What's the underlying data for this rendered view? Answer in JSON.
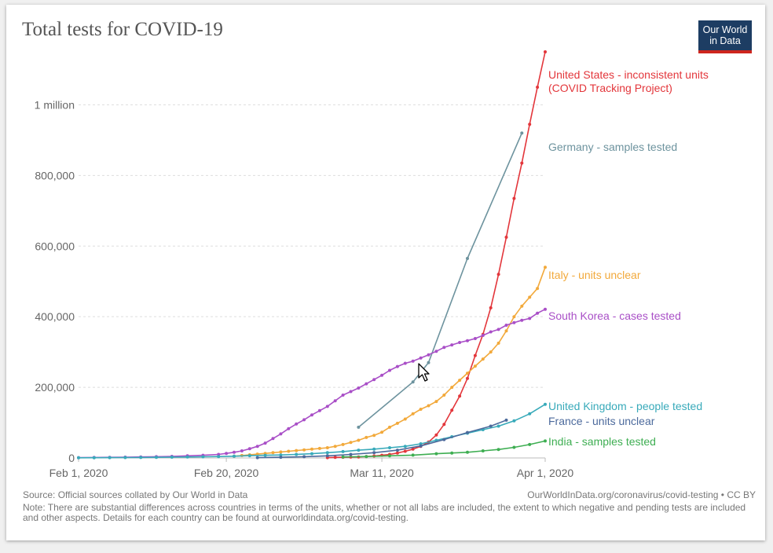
{
  "title": "Total tests for COVID-19",
  "logo": {
    "line1": "Our World",
    "line2": "in Data"
  },
  "footer": {
    "source": "Source: Official sources collated by Our World in Data",
    "url": "OurWorldInData.org/coronavirus/covid-testing • CC BY",
    "note": "Note: There are substantial differences across countries in terms of the units, whether or not all labs are included, the extent to which negative and pending tests are included and other aspects. Details for each country can be found at ourworldindata.org/covid-testing."
  },
  "chart_data": {
    "type": "line",
    "title": "Total tests for COVID-19",
    "xlabel": "",
    "ylabel": "",
    "x_range": [
      "2020-02-01",
      "2020-04-01"
    ],
    "ylim": [
      0,
      1150000
    ],
    "x_ticks": [
      {
        "date": "2020-02-01",
        "label": "Feb 1, 2020"
      },
      {
        "date": "2020-02-20",
        "label": "Feb 20, 2020"
      },
      {
        "date": "2020-03-11",
        "label": "Mar 11, 2020"
      },
      {
        "date": "2020-04-01",
        "label": "Apr 1, 2020"
      }
    ],
    "y_ticks": [
      {
        "value": 0,
        "label": "0"
      },
      {
        "value": 200000,
        "label": "200,000"
      },
      {
        "value": 400000,
        "label": "400,000"
      },
      {
        "value": 600000,
        "label": "600,000"
      },
      {
        "value": 800000,
        "label": "800,000"
      },
      {
        "value": 1000000,
        "label": "1 million"
      }
    ],
    "grid": "horizontal",
    "legend": "inline-right",
    "series": [
      {
        "name": "United States - inconsistent units (COVID Tracking Project)",
        "label_lines": [
          "United States - inconsistent units",
          "(COVID Tracking Project)"
        ],
        "color": "#e3363b",
        "points": [
          [
            "2020-03-04",
            1000
          ],
          [
            "2020-03-05",
            1500
          ],
          [
            "2020-03-06",
            2000
          ],
          [
            "2020-03-07",
            2500
          ],
          [
            "2020-03-08",
            3000
          ],
          [
            "2020-03-09",
            4000
          ],
          [
            "2020-03-10",
            5500
          ],
          [
            "2020-03-11",
            7500
          ],
          [
            "2020-03-12",
            10000
          ],
          [
            "2020-03-13",
            14000
          ],
          [
            "2020-03-14",
            19000
          ],
          [
            "2020-03-15",
            25000
          ],
          [
            "2020-03-16",
            33000
          ],
          [
            "2020-03-17",
            45000
          ],
          [
            "2020-03-18",
            65000
          ],
          [
            "2020-03-19",
            95000
          ],
          [
            "2020-03-20",
            135000
          ],
          [
            "2020-03-21",
            175000
          ],
          [
            "2020-03-22",
            225000
          ],
          [
            "2020-03-23",
            290000
          ],
          [
            "2020-03-24",
            350000
          ],
          [
            "2020-03-25",
            425000
          ],
          [
            "2020-03-26",
            520000
          ],
          [
            "2020-03-27",
            625000
          ],
          [
            "2020-03-28",
            735000
          ],
          [
            "2020-03-29",
            835000
          ],
          [
            "2020-03-30",
            945000
          ],
          [
            "2020-03-31",
            1050000
          ],
          [
            "2020-04-01",
            1150000
          ]
        ]
      },
      {
        "name": "Germany - samples tested",
        "label_lines": [
          "Germany - samples tested"
        ],
        "color": "#6d939e",
        "points": [
          [
            "2020-03-08",
            87000
          ],
          [
            "2020-03-15",
            215000
          ],
          [
            "2020-03-17",
            270000
          ],
          [
            "2020-03-22",
            565000
          ],
          [
            "2020-03-29",
            920000
          ]
        ]
      },
      {
        "name": "Italy - units unclear",
        "label_lines": [
          "Italy - units unclear"
        ],
        "color": "#f2a93b",
        "points": [
          [
            "2020-02-21",
            5000
          ],
          [
            "2020-02-22",
            7000
          ],
          [
            "2020-02-23",
            9000
          ],
          [
            "2020-02-24",
            11000
          ],
          [
            "2020-02-25",
            13000
          ],
          [
            "2020-02-26",
            15000
          ],
          [
            "2020-02-27",
            17000
          ],
          [
            "2020-02-28",
            19000
          ],
          [
            "2020-02-29",
            21000
          ],
          [
            "2020-03-01",
            23000
          ],
          [
            "2020-03-02",
            25000
          ],
          [
            "2020-03-03",
            27000
          ],
          [
            "2020-03-04",
            29000
          ],
          [
            "2020-03-05",
            33000
          ],
          [
            "2020-03-06",
            38000
          ],
          [
            "2020-03-07",
            44000
          ],
          [
            "2020-03-08",
            50000
          ],
          [
            "2020-03-09",
            58000
          ],
          [
            "2020-03-10",
            64000
          ],
          [
            "2020-03-11",
            73000
          ],
          [
            "2020-03-12",
            87000
          ],
          [
            "2020-03-13",
            98000
          ],
          [
            "2020-03-14",
            110000
          ],
          [
            "2020-03-15",
            125000
          ],
          [
            "2020-03-16",
            138000
          ],
          [
            "2020-03-17",
            148000
          ],
          [
            "2020-03-18",
            160000
          ],
          [
            "2020-03-19",
            178000
          ],
          [
            "2020-03-20",
            200000
          ],
          [
            "2020-03-21",
            220000
          ],
          [
            "2020-03-22",
            240000
          ],
          [
            "2020-03-23",
            260000
          ],
          [
            "2020-03-24",
            280000
          ],
          [
            "2020-03-25",
            300000
          ],
          [
            "2020-03-26",
            325000
          ],
          [
            "2020-03-27",
            360000
          ],
          [
            "2020-03-28",
            400000
          ],
          [
            "2020-03-29",
            430000
          ],
          [
            "2020-03-30",
            455000
          ],
          [
            "2020-03-31",
            480000
          ],
          [
            "2020-04-01",
            540000
          ]
        ]
      },
      {
        "name": "South Korea - cases tested",
        "label_lines": [
          "South Korea - cases tested"
        ],
        "color": "#a94fc7",
        "points": [
          [
            "2020-02-01",
            1000
          ],
          [
            "2020-02-03",
            1300
          ],
          [
            "2020-02-05",
            1700
          ],
          [
            "2020-02-07",
            2200
          ],
          [
            "2020-02-09",
            2800
          ],
          [
            "2020-02-11",
            3500
          ],
          [
            "2020-02-13",
            4500
          ],
          [
            "2020-02-15",
            6000
          ],
          [
            "2020-02-17",
            7500
          ],
          [
            "2020-02-19",
            10000
          ],
          [
            "2020-02-20",
            13000
          ],
          [
            "2020-02-21",
            16000
          ],
          [
            "2020-02-22",
            20000
          ],
          [
            "2020-02-23",
            26000
          ],
          [
            "2020-02-24",
            33000
          ],
          [
            "2020-02-25",
            42000
          ],
          [
            "2020-02-26",
            55000
          ],
          [
            "2020-02-27",
            68000
          ],
          [
            "2020-02-28",
            83000
          ],
          [
            "2020-02-29",
            96000
          ],
          [
            "2020-03-01",
            108000
          ],
          [
            "2020-03-02",
            122000
          ],
          [
            "2020-03-03",
            134000
          ],
          [
            "2020-03-04",
            146000
          ],
          [
            "2020-03-05",
            162000
          ],
          [
            "2020-03-06",
            178000
          ],
          [
            "2020-03-07",
            188000
          ],
          [
            "2020-03-08",
            198000
          ],
          [
            "2020-03-09",
            210000
          ],
          [
            "2020-03-10",
            222000
          ],
          [
            "2020-03-11",
            234000
          ],
          [
            "2020-03-12",
            248000
          ],
          [
            "2020-03-13",
            259000
          ],
          [
            "2020-03-14",
            268000
          ],
          [
            "2020-03-15",
            274000
          ],
          [
            "2020-03-16",
            283000
          ],
          [
            "2020-03-17",
            292000
          ],
          [
            "2020-03-18",
            302000
          ],
          [
            "2020-03-19",
            313000
          ],
          [
            "2020-03-20",
            320000
          ],
          [
            "2020-03-21",
            327000
          ],
          [
            "2020-03-22",
            332000
          ],
          [
            "2020-03-23",
            338000
          ],
          [
            "2020-03-24",
            347000
          ],
          [
            "2020-03-25",
            357000
          ],
          [
            "2020-03-26",
            364000
          ],
          [
            "2020-03-27",
            376000
          ],
          [
            "2020-03-28",
            383000
          ],
          [
            "2020-03-29",
            390000
          ],
          [
            "2020-03-30",
            395000
          ],
          [
            "2020-03-31",
            410000
          ],
          [
            "2020-04-01",
            421000
          ]
        ]
      },
      {
        "name": "United Kingdom - people tested",
        "label_lines": [
          "United Kingdom - people tested"
        ],
        "color": "#38aaba",
        "points": [
          [
            "2020-02-01",
            500
          ],
          [
            "2020-02-03",
            700
          ],
          [
            "2020-02-05",
            900
          ],
          [
            "2020-02-07",
            1100
          ],
          [
            "2020-02-09",
            1400
          ],
          [
            "2020-02-11",
            1800
          ],
          [
            "2020-02-13",
            2200
          ],
          [
            "2020-02-15",
            2700
          ],
          [
            "2020-02-17",
            3300
          ],
          [
            "2020-02-19",
            4000
          ],
          [
            "2020-02-21",
            5000
          ],
          [
            "2020-02-23",
            6500
          ],
          [
            "2020-02-25",
            7500
          ],
          [
            "2020-02-27",
            8500
          ],
          [
            "2020-02-29",
            10000
          ],
          [
            "2020-03-02",
            12000
          ],
          [
            "2020-03-04",
            15000
          ],
          [
            "2020-03-06",
            18000
          ],
          [
            "2020-03-08",
            22000
          ],
          [
            "2020-03-10",
            25000
          ],
          [
            "2020-03-12",
            29000
          ],
          [
            "2020-03-14",
            33000
          ],
          [
            "2020-03-16",
            40000
          ],
          [
            "2020-03-18",
            50000
          ],
          [
            "2020-03-20",
            60000
          ],
          [
            "2020-03-22",
            70000
          ],
          [
            "2020-03-24",
            80000
          ],
          [
            "2020-03-26",
            90000
          ],
          [
            "2020-03-28",
            105000
          ],
          [
            "2020-03-30",
            125000
          ],
          [
            "2020-04-01",
            152000
          ]
        ]
      },
      {
        "name": "France - units unclear",
        "label_lines": [
          "France - units unclear"
        ],
        "color": "#4c6a9c",
        "points": [
          [
            "2020-02-24",
            1000
          ],
          [
            "2020-02-27",
            2000
          ],
          [
            "2020-03-01",
            3500
          ],
          [
            "2020-03-04",
            6000
          ],
          [
            "2020-03-07",
            10000
          ],
          [
            "2020-03-10",
            15000
          ],
          [
            "2020-03-13",
            22000
          ],
          [
            "2020-03-16",
            34000
          ],
          [
            "2020-03-19",
            52000
          ],
          [
            "2020-03-22",
            72000
          ],
          [
            "2020-03-25",
            90000
          ],
          [
            "2020-03-27",
            107000
          ]
        ]
      },
      {
        "name": "India - samples tested",
        "label_lines": [
          "India - samples tested"
        ],
        "color": "#3eae52",
        "points": [
          [
            "2020-03-06",
            3000
          ],
          [
            "2020-03-09",
            4000
          ],
          [
            "2020-03-12",
            6000
          ],
          [
            "2020-03-15",
            8000
          ],
          [
            "2020-03-18",
            12000
          ],
          [
            "2020-03-20",
            14000
          ],
          [
            "2020-03-22",
            16000
          ],
          [
            "2020-03-24",
            20000
          ],
          [
            "2020-03-26",
            24000
          ],
          [
            "2020-03-28",
            30000
          ],
          [
            "2020-03-30",
            38000
          ],
          [
            "2020-04-01",
            48000
          ]
        ]
      }
    ]
  }
}
